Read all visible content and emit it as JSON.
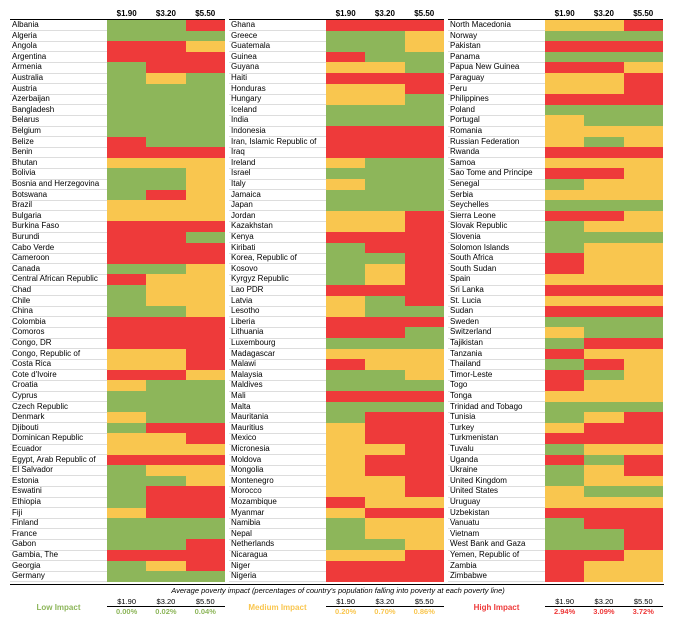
{
  "header": {
    "poverty_lines": [
      "$1.90",
      "$3.20",
      "$5.50"
    ]
  },
  "levels": [
    {
      "label": "Low Impact",
      "color": "#8db65a",
      "averages": [
        "0.00%",
        "0.02%",
        "0.04%"
      ]
    },
    {
      "label": "Medium Impact",
      "color": "#f9c64f",
      "averages": [
        "0.20%",
        "0.70%",
        "0.86%"
      ]
    },
    {
      "label": "High Impact",
      "color": "#ee3a3a",
      "averages": [
        "2.94%",
        "3.09%",
        "3.72%"
      ]
    }
  ],
  "footnote": "Average poverty impact (percentages of country's population falling into poverty at each poverty line)",
  "table": {
    "columns": [
      {
        "rows": [
          [
            "Albania",
            0,
            0,
            2
          ],
          [
            "Algeria",
            0,
            0,
            0
          ],
          [
            "Angola",
            2,
            2,
            1
          ],
          [
            "Argentina",
            2,
            2,
            2
          ],
          [
            "Armenia",
            0,
            2,
            2
          ],
          [
            "Australia",
            0,
            1,
            0
          ],
          [
            "Austria",
            0,
            0,
            0
          ],
          [
            "Azerbaijan",
            0,
            0,
            0
          ],
          [
            "Bangladesh",
            0,
            0,
            0
          ],
          [
            "Belarus",
            0,
            0,
            0
          ],
          [
            "Belgium",
            0,
            0,
            0
          ],
          [
            "Belize",
            2,
            0,
            0
          ],
          [
            "Benin",
            2,
            2,
            2
          ],
          [
            "Bhutan",
            1,
            1,
            1
          ],
          [
            "Bolivia",
            0,
            0,
            1
          ],
          [
            "Bosnia and Herzegovina",
            0,
            0,
            1
          ],
          [
            "Botswana",
            0,
            2,
            1
          ],
          [
            "Brazil",
            1,
            1,
            1
          ],
          [
            "Bulgaria",
            1,
            1,
            1
          ],
          [
            "Burkina Faso",
            2,
            2,
            2
          ],
          [
            "Burundi",
            2,
            2,
            0
          ],
          [
            "Cabo Verde",
            2,
            2,
            2
          ],
          [
            "Cameroon",
            2,
            2,
            2
          ],
          [
            "Canada",
            0,
            0,
            1
          ],
          [
            "Central African Republic",
            2,
            1,
            1
          ],
          [
            "Chad",
            0,
            1,
            1
          ],
          [
            "Chile",
            0,
            1,
            1
          ],
          [
            "China",
            0,
            0,
            1
          ],
          [
            "Colombia",
            2,
            2,
            2
          ],
          [
            "Comoros",
            2,
            2,
            2
          ],
          [
            "Congo, DR",
            2,
            2,
            2
          ],
          [
            "Congo, Republic of",
            1,
            1,
            2
          ],
          [
            "Costa Rica",
            1,
            1,
            2
          ],
          [
            "Cote d'Ivoire",
            2,
            2,
            1
          ],
          [
            "Croatia",
            1,
            0,
            0
          ],
          [
            "Cyprus",
            0,
            0,
            0
          ],
          [
            "Czech Republic",
            0,
            0,
            0
          ],
          [
            "Denmark",
            1,
            0,
            0
          ],
          [
            "Djibouti",
            0,
            2,
            2
          ],
          [
            "Dominican Republic",
            1,
            1,
            2
          ],
          [
            "Ecuador",
            1,
            1,
            1
          ],
          [
            "Egypt, Arab Republic of",
            2,
            2,
            2
          ],
          [
            "El Salvador",
            0,
            1,
            1
          ],
          [
            "Estonia",
            0,
            0,
            1
          ],
          [
            "Eswatini",
            0,
            2,
            2
          ],
          [
            "Ethiopia",
            0,
            2,
            2
          ],
          [
            "Fiji",
            1,
            2,
            2
          ],
          [
            "Finland",
            0,
            0,
            0
          ],
          [
            "France",
            0,
            0,
            0
          ],
          [
            "Gabon",
            0,
            0,
            2
          ],
          [
            "Gambia, The",
            2,
            2,
            2
          ],
          [
            "Georgia",
            0,
            1,
            2
          ],
          [
            "Germany",
            0,
            0,
            0
          ]
        ]
      },
      {
        "rows": [
          [
            "Ghana",
            2,
            2,
            2
          ],
          [
            "Greece",
            0,
            0,
            1
          ],
          [
            "Guatemala",
            0,
            0,
            1
          ],
          [
            "Guinea",
            2,
            0,
            0
          ],
          [
            "Guyana",
            1,
            1,
            0
          ],
          [
            "Haiti",
            2,
            2,
            2
          ],
          [
            "Honduras",
            1,
            1,
            2
          ],
          [
            "Hungary",
            1,
            1,
            0
          ],
          [
            "Iceland",
            0,
            0,
            0
          ],
          [
            "India",
            0,
            0,
            0
          ],
          [
            "Indonesia",
            2,
            2,
            2
          ],
          [
            "Iran, Islamic Republic of",
            2,
            2,
            2
          ],
          [
            "Iraq",
            2,
            2,
            2
          ],
          [
            "Ireland",
            1,
            0,
            0
          ],
          [
            "Israel",
            0,
            0,
            0
          ],
          [
            "Italy",
            1,
            0,
            0
          ],
          [
            "Jamaica",
            0,
            0,
            0
          ],
          [
            "Japan",
            0,
            0,
            0
          ],
          [
            "Jordan",
            1,
            1,
            2
          ],
          [
            "Kazakhstan",
            1,
            1,
            2
          ],
          [
            "Kenya",
            2,
            2,
            2
          ],
          [
            "Kiribati",
            0,
            2,
            2
          ],
          [
            "Korea, Republic of",
            0,
            0,
            2
          ],
          [
            "Kosovo",
            0,
            1,
            2
          ],
          [
            "Kyrgyz Republic",
            0,
            1,
            2
          ],
          [
            "Lao PDR",
            2,
            2,
            2
          ],
          [
            "Latvia",
            1,
            0,
            2
          ],
          [
            "Lesotho",
            1,
            0,
            0
          ],
          [
            "Liberia",
            2,
            2,
            2
          ],
          [
            "Lithuania",
            2,
            2,
            0
          ],
          [
            "Luxembourg",
            0,
            0,
            0
          ],
          [
            "Madagascar",
            1,
            1,
            1
          ],
          [
            "Malawi",
            2,
            1,
            1
          ],
          [
            "Malaysia",
            0,
            0,
            1
          ],
          [
            "Maldives",
            0,
            0,
            0
          ],
          [
            "Mali",
            2,
            2,
            2
          ],
          [
            "Malta",
            0,
            0,
            0
          ],
          [
            "Mauritania",
            0,
            2,
            2
          ],
          [
            "Mauritius",
            1,
            2,
            2
          ],
          [
            "Mexico",
            1,
            2,
            2
          ],
          [
            "Micronesia",
            1,
            1,
            2
          ],
          [
            "Moldova",
            1,
            2,
            2
          ],
          [
            "Mongolia",
            1,
            2,
            2
          ],
          [
            "Montenegro",
            1,
            1,
            2
          ],
          [
            "Morocco",
            1,
            1,
            2
          ],
          [
            "Mozambique",
            2,
            1,
            1
          ],
          [
            "Myanmar",
            1,
            2,
            2
          ],
          [
            "Namibia",
            0,
            1,
            1
          ],
          [
            "Nepal",
            0,
            1,
            1
          ],
          [
            "Netherlands",
            0,
            0,
            1
          ],
          [
            "Nicaragua",
            1,
            1,
            2
          ],
          [
            "Niger",
            2,
            2,
            2
          ],
          [
            "Nigeria",
            2,
            2,
            2
          ]
        ]
      },
      {
        "rows": [
          [
            "North Macedonia",
            1,
            1,
            2
          ],
          [
            "Norway",
            0,
            0,
            0
          ],
          [
            "Pakistan",
            2,
            2,
            2
          ],
          [
            "Panama",
            0,
            0,
            0
          ],
          [
            "Papua New Guinea",
            2,
            2,
            1
          ],
          [
            "Paraguay",
            1,
            1,
            2
          ],
          [
            "Peru",
            1,
            1,
            2
          ],
          [
            "Philippines",
            2,
            2,
            2
          ],
          [
            "Poland",
            0,
            0,
            0
          ],
          [
            "Portugal",
            1,
            0,
            0
          ],
          [
            "Romania",
            1,
            1,
            1
          ],
          [
            "Russian Federation",
            1,
            0,
            1
          ],
          [
            "Rwanda",
            2,
            2,
            2
          ],
          [
            "Samoa",
            1,
            1,
            1
          ],
          [
            "Sao Tome and Principe",
            2,
            2,
            1
          ],
          [
            "Senegal",
            0,
            1,
            1
          ],
          [
            "Serbia",
            1,
            1,
            1
          ],
          [
            "Seychelles",
            0,
            0,
            0
          ],
          [
            "Sierra Leone",
            2,
            2,
            1
          ],
          [
            "Slovak Republic",
            0,
            1,
            1
          ],
          [
            "Slovenia",
            0,
            0,
            0
          ],
          [
            "Solomon Islands",
            0,
            1,
            1
          ],
          [
            "South Africa",
            2,
            1,
            1
          ],
          [
            "South Sudan",
            2,
            1,
            1
          ],
          [
            "Spain",
            1,
            1,
            1
          ],
          [
            "Sri Lanka",
            2,
            2,
            2
          ],
          [
            "St. Lucia",
            1,
            1,
            1
          ],
          [
            "Sudan",
            2,
            2,
            2
          ],
          [
            "Sweden",
            0,
            0,
            0
          ],
          [
            "Switzerland",
            1,
            0,
            0
          ],
          [
            "Tajikistan",
            0,
            2,
            2
          ],
          [
            "Tanzania",
            2,
            1,
            1
          ],
          [
            "Thailand",
            0,
            2,
            1
          ],
          [
            "Timor-Leste",
            2,
            0,
            1
          ],
          [
            "Togo",
            2,
            1,
            1
          ],
          [
            "Tonga",
            1,
            1,
            1
          ],
          [
            "Trinidad and Tobago",
            0,
            0,
            0
          ],
          [
            "Tunisia",
            0,
            1,
            2
          ],
          [
            "Turkey",
            1,
            2,
            2
          ],
          [
            "Turkmenistan",
            2,
            2,
            2
          ],
          [
            "Tuvalu",
            0,
            1,
            1
          ],
          [
            "Uganda",
            2,
            0,
            2
          ],
          [
            "Ukraine",
            0,
            1,
            2
          ],
          [
            "United Kingdom",
            0,
            1,
            1
          ],
          [
            "United States",
            1,
            0,
            0
          ],
          [
            "Uruguay",
            1,
            1,
            1
          ],
          [
            "Uzbekistan",
            2,
            2,
            2
          ],
          [
            "Vanuatu",
            0,
            2,
            2
          ],
          [
            "Vietnam",
            0,
            0,
            2
          ],
          [
            "West Bank and Gaza",
            0,
            0,
            2
          ],
          [
            "Yemen, Republic of",
            2,
            2,
            1
          ],
          [
            "Zambia",
            2,
            1,
            1
          ],
          [
            "Zimbabwe",
            2,
            1,
            1
          ]
        ]
      }
    ]
  }
}
